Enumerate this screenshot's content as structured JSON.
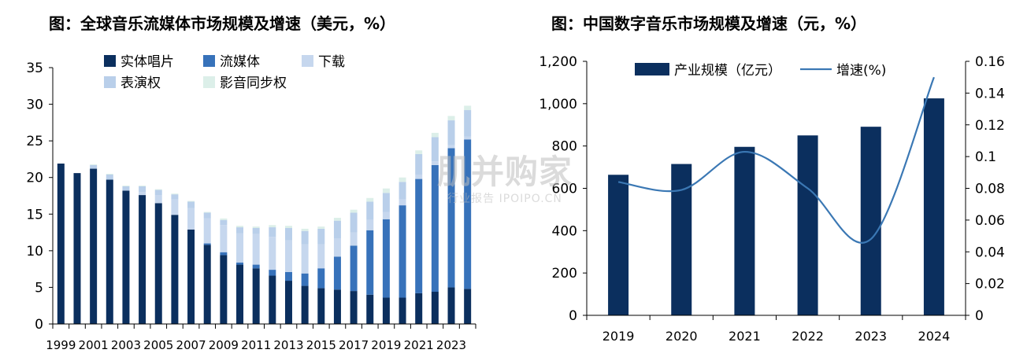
{
  "colors": {
    "physical": "#0b2f5e",
    "streaming": "#3772ba",
    "download": "#c6d7ee",
    "performance": "#b9cfea",
    "sync": "#dcefe9",
    "bar_dark": "#0b2f5e",
    "line": "#3b78b4"
  },
  "watermark": {
    "main": "肌并购家",
    "sub": "行业报告 IPOIPO.CN"
  },
  "chart_data": [
    {
      "type": "bar",
      "stacked": true,
      "title": "图：全球音乐流媒体市场规模及增速（美元，%）",
      "ylim": [
        0,
        35
      ],
      "yticks": [
        0,
        5,
        10,
        15,
        20,
        25,
        30,
        35
      ],
      "xtick_labels": [
        "1999",
        "2001",
        "2003",
        "2005",
        "2007",
        "2009",
        "2011",
        "2013",
        "2015",
        "2017",
        "2019",
        "2021",
        "2023"
      ],
      "categories": [
        "1999",
        "2000",
        "2001",
        "2002",
        "2003",
        "2004",
        "2005",
        "2006",
        "2007",
        "2008",
        "2009",
        "2010",
        "2011",
        "2012",
        "2013",
        "2014",
        "2015",
        "2016",
        "2017",
        "2018",
        "2019",
        "2020",
        "2021",
        "2022",
        "2023",
        "2024"
      ],
      "legend": {
        "placement": "top-left"
      },
      "series": [
        {
          "name": "实体唱片",
          "color_key": "physical",
          "values": [
            21.9,
            20.6,
            21.2,
            19.7,
            18.2,
            17.6,
            16.5,
            14.9,
            12.9,
            10.8,
            9.4,
            8.1,
            7.6,
            6.6,
            5.9,
            5.2,
            4.9,
            4.7,
            4.5,
            4.0,
            3.6,
            3.6,
            4.2,
            4.4,
            5.0,
            4.8
          ]
        },
        {
          "name": "流媒体",
          "color_key": "streaming",
          "values": [
            0,
            0,
            0,
            0,
            0,
            0,
            0,
            0,
            0,
            0.2,
            0.4,
            0.3,
            0.5,
            0.8,
            1.2,
            1.7,
            2.7,
            4.5,
            6.2,
            8.8,
            10.7,
            12.6,
            15.6,
            17.3,
            19.0,
            20.4
          ]
        },
        {
          "name": "下载",
          "color_key": "download",
          "values": [
            0,
            0,
            0,
            0,
            0,
            0.4,
            1.1,
            2.1,
            2.9,
            3.4,
            3.7,
            4.0,
            4.2,
            4.5,
            4.3,
            4.0,
            3.3,
            2.5,
            1.8,
            1.4,
            1.0,
            0.8,
            0.6,
            0.5,
            0.4,
            0.4
          ]
        },
        {
          "name": "表演权",
          "color_key": "performance",
          "values": [
            0,
            0,
            0.5,
            0.7,
            0.6,
            0.8,
            0.7,
            0.7,
            0.9,
            0.8,
            0.7,
            0.8,
            0.8,
            1.3,
            1.7,
            1.8,
            2.1,
            2.4,
            2.7,
            2.5,
            2.6,
            2.4,
            2.8,
            3.3,
            3.4,
            3.6
          ]
        },
        {
          "name": "影音同步权",
          "color_key": "sync",
          "values": [
            0,
            0,
            0.1,
            0.1,
            0.1,
            0.1,
            0.1,
            0.1,
            0.1,
            0.1,
            0.2,
            0.2,
            0.2,
            0.3,
            0.3,
            0.3,
            0.3,
            0.4,
            0.4,
            0.5,
            0.6,
            0.6,
            0.5,
            0.6,
            0.6,
            0.6
          ]
        }
      ]
    },
    {
      "type": "bar",
      "title": "图：中国数字音乐市场规模及增速（元，%）",
      "categories": [
        "2019",
        "2020",
        "2021",
        "2022",
        "2023",
        "2024"
      ],
      "ylim_left": [
        0,
        1200
      ],
      "yticks_left": [
        "0",
        "200",
        "400",
        "600",
        "800",
        "1,000",
        "1,200"
      ],
      "ylim_right": [
        0,
        0.16
      ],
      "yticks_right": [
        "0",
        "0.02",
        "0.04",
        "0.06",
        "0.08",
        "0.1",
        "0.12",
        "0.14",
        "0.16"
      ],
      "legend": {
        "placement": "top-left"
      },
      "series": [
        {
          "name": "产业规模（亿元）",
          "type": "bar",
          "color_key": "bar_dark",
          "values": [
            664,
            715,
            796,
            850,
            891,
            1025
          ]
        },
        {
          "name": "增速(%)",
          "type": "line",
          "color_key": "line",
          "values": [
            0.084,
            0.079,
            0.103,
            0.08,
            0.048,
            0.15
          ]
        }
      ]
    }
  ]
}
